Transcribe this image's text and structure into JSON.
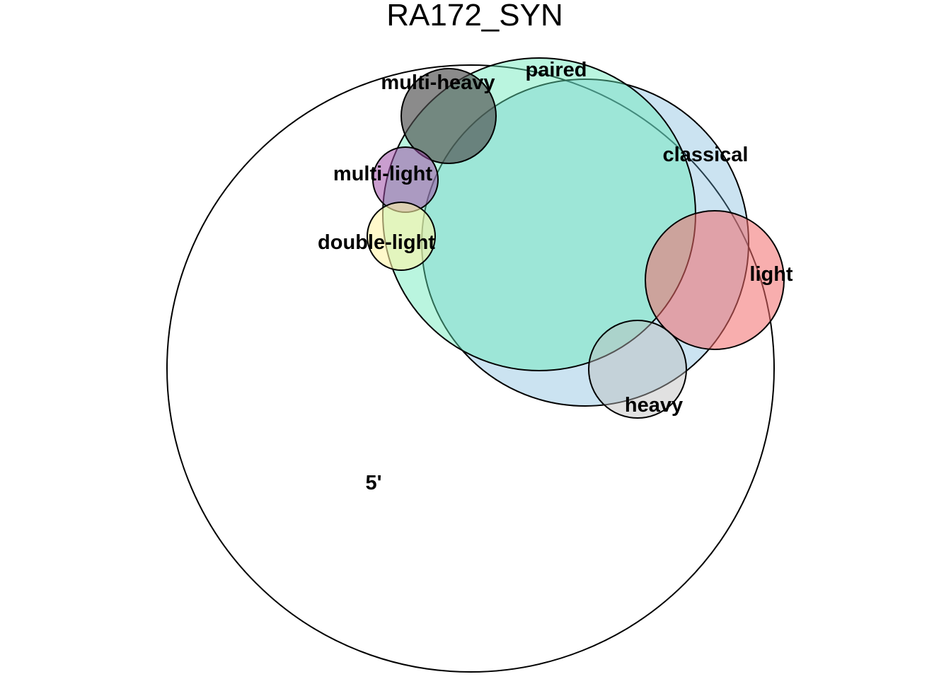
{
  "title": "RA172_SYN",
  "sets": [
    {
      "id": "five-prime",
      "label": "5'",
      "color": "#ffffff"
    },
    {
      "id": "classical",
      "label": "classical",
      "color": "#6baed6"
    },
    {
      "id": "paired",
      "label": "paired",
      "color": "#66e8b8"
    },
    {
      "id": "light",
      "label": "light",
      "color": "#f26b6b"
    },
    {
      "id": "heavy",
      "label": "heavy",
      "color": "#bdbdbd"
    },
    {
      "id": "multi-heavy",
      "label": "multi-heavy",
      "color": "#4d4d4d"
    },
    {
      "id": "multi-light",
      "label": "multi-light",
      "color": "#9e4fa8"
    },
    {
      "id": "double-light",
      "label": "double-light",
      "color": "#fff5a8"
    }
  ]
}
